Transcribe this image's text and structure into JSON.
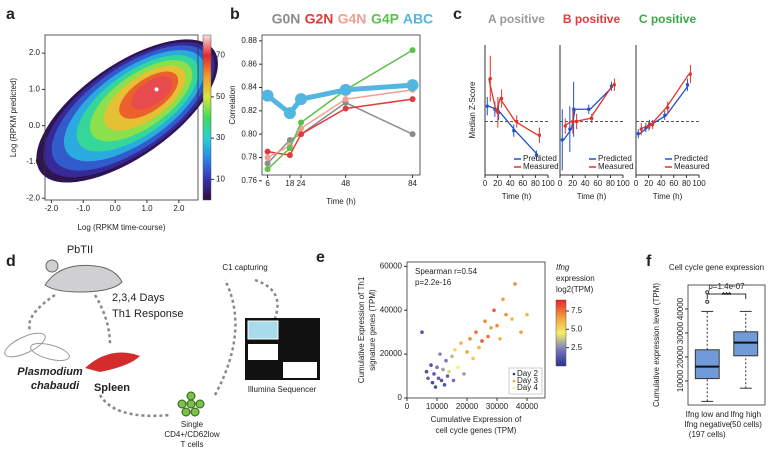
{
  "chart_data": [
    {
      "type": "density",
      "label": "a",
      "xlabel": "Log (RPKM time-course)",
      "ylabel": "Log (RPKM predicted)",
      "xlim": [
        -2.2,
        2.6
      ],
      "ylim": [
        -2.05,
        2.5
      ],
      "xticks": [
        {
          "value": -2,
          "label": "-2.0"
        },
        {
          "value": -1,
          "label": "-1.0"
        },
        {
          "value": 0,
          "label": "0.0"
        },
        {
          "value": 1,
          "label": "1.0"
        },
        {
          "value": 2,
          "label": "2.0"
        }
      ],
      "yticks": [
        {
          "value": -2,
          "label": "-2.0"
        },
        {
          "value": -1,
          "label": "-1.0"
        },
        {
          "value": 0,
          "label": "0.0"
        },
        {
          "value": 1,
          "label": "1.0"
        },
        {
          "value": 2,
          "label": "2.0"
        }
      ],
      "peak": {
        "x": 1.3,
        "y": 1.0
      },
      "levels": [
        2,
        8,
        15,
        25,
        35,
        45,
        55,
        65,
        72
      ],
      "clim": [
        0,
        80
      ],
      "cticks": [
        10,
        30,
        50,
        70
      ],
      "colormap": [
        "#2a0f3a",
        "#3a2fb0",
        "#2a86e8",
        "#2ad0d6",
        "#3fdc5c",
        "#d7e43c",
        "#f39a2c",
        "#e4262a",
        "#f6e0e0"
      ]
    },
    {
      "type": "line",
      "label": "b",
      "xlabel": "Time (h)",
      "ylabel": "Correlation",
      "x": [
        6,
        18,
        24,
        48,
        84
      ],
      "xlim": [
        3,
        88
      ],
      "xticks": [
        6,
        18,
        24,
        48,
        84
      ],
      "ylim": [
        0.765,
        0.885
      ],
      "yticks": [
        {
          "value": 0.76,
          "label": "0.76"
        },
        {
          "value": 0.78,
          "label": "0.78"
        },
        {
          "value": 0.8,
          "label": "0.80"
        },
        {
          "value": 0.82,
          "label": "0.82"
        },
        {
          "value": 0.84,
          "label": "0.84"
        },
        {
          "value": 0.86,
          "label": "0.86"
        },
        {
          "value": 0.88,
          "label": "0.88"
        }
      ],
      "series": [
        {
          "name": "G0N",
          "color": "#8c8c8c",
          "line_width": 1.5,
          "values": [
            0.775,
            0.795,
            0.8,
            0.827,
            0.8
          ]
        },
        {
          "name": "G2N",
          "color": "#e23b3b",
          "line_width": 1.5,
          "values": [
            0.785,
            0.782,
            0.8,
            0.822,
            0.83
          ]
        },
        {
          "name": "G4N",
          "color": "#f0a090",
          "line_width": 1.5,
          "values": [
            0.78,
            0.79,
            0.805,
            0.83,
            0.838
          ]
        },
        {
          "name": "G4P",
          "color": "#5cc24a",
          "line_width": 1.5,
          "values": [
            0.77,
            0.788,
            0.81,
            0.838,
            0.872
          ]
        },
        {
          "name": "ABC",
          "color": "#52b6e0",
          "line_width": 5,
          "values": [
            0.833,
            0.818,
            0.83,
            0.838,
            0.842
          ]
        }
      ]
    },
    {
      "type": "errorline",
      "label": "c",
      "title": "A positive",
      "title_color": "#9a9a9a",
      "xlabel": "Time (h)",
      "ylabel": "Median Z-Score",
      "x": [
        6,
        18,
        24,
        48,
        84
      ],
      "xlim": [
        0,
        100
      ],
      "xticks": [
        0,
        20,
        40,
        60,
        80,
        100
      ],
      "ylim": [
        -3.5,
        5
      ],
      "refline": 0,
      "series": [
        {
          "name": "Predicted",
          "color": "#2152c8",
          "values": [
            1.0,
            0.8,
            0.6,
            -0.6,
            -2.2
          ],
          "errors": [
            0.6,
            0.5,
            0.5,
            0.4,
            0.3
          ]
        },
        {
          "name": "Measured",
          "color": "#e0342a",
          "values": [
            2.8,
            0.6,
            1.5,
            0.0,
            -0.9
          ],
          "errors": [
            1.5,
            1.0,
            0.6,
            0.4,
            0.5
          ]
        }
      ]
    },
    {
      "type": "errorline",
      "title": "B positive",
      "title_color": "#e23b3b",
      "xlabel": "Time (h)",
      "x": [
        6,
        18,
        24,
        48,
        84
      ],
      "xlim": [
        0,
        100
      ],
      "xticks": [
        0,
        20,
        40,
        60,
        80,
        100
      ],
      "ylim": [
        -3.5,
        5
      ],
      "refline": 0,
      "series": [
        {
          "name": "Predicted",
          "color": "#2152c8",
          "values": [
            -1.2,
            -0.5,
            0.8,
            0.8,
            2.3
          ],
          "errors": [
            2.0,
            1.5,
            1.8,
            0.3,
            0.3
          ]
        },
        {
          "name": "Measured",
          "color": "#e0342a",
          "values": [
            -0.3,
            0.0,
            0.0,
            0.2,
            2.4
          ],
          "errors": [
            0.5,
            0.8,
            0.5,
            0.3,
            0.4
          ]
        }
      ]
    },
    {
      "type": "errorline",
      "title": "C positive",
      "title_color": "#3aa84a",
      "xlabel": "Time (h)",
      "x": [
        6,
        18,
        24,
        48,
        84
      ],
      "xlim": [
        0,
        100
      ],
      "xticks": [
        0,
        20,
        40,
        60,
        80,
        100
      ],
      "ylim": [
        -3.5,
        5
      ],
      "refline": 0,
      "series": [
        {
          "name": "Predicted",
          "color": "#2152c8",
          "values": [
            -0.8,
            -0.4,
            -0.2,
            0.4,
            2.4
          ],
          "errors": [
            0.3,
            0.3,
            0.3,
            0.3,
            0.4
          ]
        },
        {
          "name": "Measured",
          "color": "#e0342a",
          "values": [
            -0.5,
            -0.3,
            -0.2,
            0.9,
            3.1
          ],
          "errors": [
            0.4,
            0.3,
            0.3,
            0.4,
            0.6
          ]
        }
      ]
    },
    {
      "type": "scatter",
      "label": "e",
      "xlabel": [
        "Cumulative Expression of",
        "cell cycle genes (TPM)"
      ],
      "ylabel": [
        "Cumulative Expression of Th1",
        "signature genes (TPM)"
      ],
      "annotations": [
        "Spearman r=0.54",
        "p=2.2e-16"
      ],
      "xlim": [
        0,
        46000
      ],
      "xticks": [
        0,
        10000,
        20000,
        30000,
        40000
      ],
      "ylim": [
        0,
        62000
      ],
      "yticks": [
        0,
        20000,
        40000,
        60000
      ],
      "x": [
        5000,
        6500,
        7000,
        8000,
        8500,
        9000,
        9500,
        10000,
        10500,
        11000,
        11500,
        12000,
        12500,
        13000,
        13500,
        14000,
        15000,
        15500,
        16000,
        17000,
        18000,
        19000,
        20000,
        21000,
        22000,
        23000,
        24000,
        25000,
        26000,
        27000,
        28000,
        29000,
        30000,
        31000,
        32000,
        33000,
        35000,
        36000,
        38000,
        40000
      ],
      "y": [
        30000,
        12000,
        9000,
        15000,
        7000,
        11000,
        5000,
        14000,
        9000,
        20000,
        8000,
        13000,
        6000,
        17000,
        10000,
        12000,
        19000,
        8000,
        22000,
        14000,
        25000,
        11000,
        21000,
        27000,
        18000,
        30000,
        23000,
        26000,
        35000,
        28000,
        32000,
        40000,
        33000,
        27000,
        45000,
        38000,
        36000,
        52000,
        30000,
        38000
      ],
      "c": [
        1.2,
        1.0,
        1.5,
        1.1,
        0.8,
        1.3,
        1.0,
        2.0,
        1.4,
        2.5,
        1.2,
        3.0,
        1.1,
        2.2,
        1.6,
        4.0,
        3.5,
        2.0,
        5.0,
        4.5,
        6.0,
        3.0,
        6.5,
        7.0,
        5.5,
        7.5,
        6.0,
        8.0,
        7.0,
        7.5,
        6.5,
        8.0,
        7.0,
        6.0,
        6.5,
        7.0,
        6.0,
        7.0,
        6.5,
        6.0
      ],
      "clim": [
        0,
        9
      ],
      "cticks": [
        {
          "value": 2.5,
          "label": "2.5"
        },
        {
          "value": 5,
          "label": "5.0"
        },
        {
          "value": 7.5,
          "label": "7.5"
        }
      ],
      "colorbar_title": [
        "Ifng",
        "expression",
        "log2(TPM)"
      ],
      "colormap": [
        "#2b2f8f",
        "#7a78c0",
        "#f4ee6c",
        "#f29a3a",
        "#e8242c"
      ],
      "legend": [
        "Day 2",
        "Day 3",
        "Day 4"
      ],
      "legend_colors": [
        "#2b2f8f",
        "#f29a3a",
        "#f4ee6c"
      ]
    },
    {
      "type": "box",
      "label": "f",
      "title": "Cell cycle gene expression",
      "ylabel": "Cumulative expression level (TPM)",
      "annotations": [
        "p=1.4e-07",
        "***"
      ],
      "categories": [
        [
          "Ifng low and",
          "Ifng negative",
          "(197 cells)"
        ],
        [
          "Ifng high",
          "(50 cells)"
        ]
      ],
      "ylim": [
        0,
        50000
      ],
      "yticks": [
        10000,
        20000,
        30000,
        40000
      ],
      "color": "#6f9bd8",
      "whisker_low": [
        1500,
        7000
      ],
      "q1": [
        11000,
        20500
      ],
      "median": [
        16000,
        26000
      ],
      "q3": [
        23000,
        30500
      ],
      "whisker_high": [
        39000,
        39000
      ],
      "outliers": [
        [
          43000,
          47000
        ],
        []
      ]
    }
  ],
  "diagram": {
    "label": "d",
    "mouse": "PbTII",
    "treatment": [
      "2,3,4 Days",
      "Th1 Response"
    ],
    "parasite": [
      "Plasmodium",
      "chabaudi"
    ],
    "organ": "Spleen",
    "cells": [
      "Single",
      "CD4+/CD62low",
      "T cells"
    ],
    "capture": "C1 capturing",
    "sequencer": "Illumina Sequencer"
  }
}
